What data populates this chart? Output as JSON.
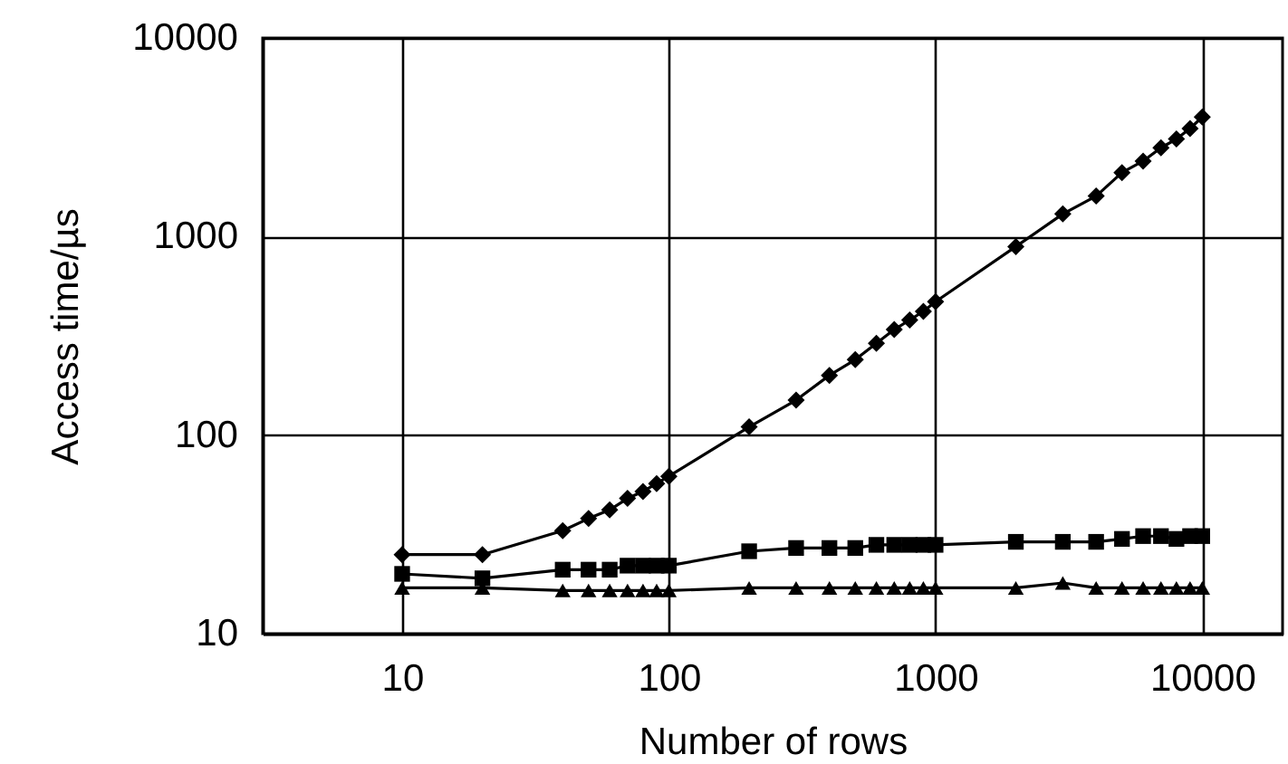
{
  "chart_data": {
    "type": "line",
    "xlabel": "Number of rows",
    "ylabel": "Access time/µs",
    "x": [
      10,
      20,
      40,
      50,
      60,
      70,
      80,
      90,
      100,
      200,
      300,
      400,
      500,
      600,
      700,
      800,
      900,
      1000,
      2000,
      3000,
      4000,
      5000,
      6000,
      7000,
      8000,
      9000,
      10000
    ],
    "series": [
      {
        "color": "#000000",
        "marker": "diamond",
        "values": [
          25,
          25,
          33,
          38,
          42,
          48,
          52,
          57,
          62,
          110,
          150,
          200,
          240,
          290,
          340,
          380,
          420,
          470,
          890,
          1300,
          1600,
          2100,
          2400,
          2800,
          3100,
          3500,
          4000
        ]
      },
      {
        "color": "#000000",
        "marker": "square",
        "values": [
          20,
          19,
          21,
          21,
          21,
          22,
          22,
          22,
          22,
          26,
          27,
          27,
          27,
          28,
          28,
          28,
          28,
          28,
          29,
          29,
          29,
          30,
          31,
          31,
          30,
          31,
          31
        ]
      },
      {
        "color": "#000000",
        "marker": "triangle",
        "values": [
          17,
          17,
          16.5,
          16.5,
          16.5,
          16.5,
          16.5,
          16.5,
          16.5,
          17,
          17,
          17,
          17,
          17,
          17,
          17,
          17,
          17,
          17,
          18,
          17,
          17,
          17,
          17,
          17,
          17,
          17
        ]
      }
    ],
    "xlim": [
      3,
      20000
    ],
    "ylim": [
      10,
      10000
    ],
    "xticks": [
      10,
      100,
      1000,
      10000
    ],
    "yticks": [
      10,
      100,
      1000,
      10000
    ],
    "log": "xy",
    "grid": true,
    "line_style": "solid"
  }
}
